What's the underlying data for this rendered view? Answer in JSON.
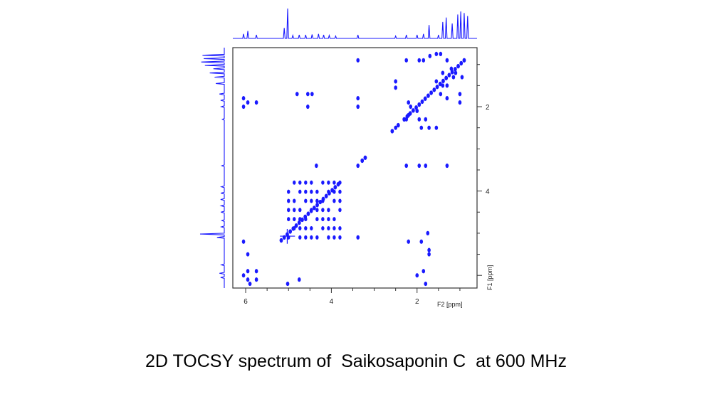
{
  "caption": "2D TOCSY spectrum of  Saikosaponin C  at 600 MHz",
  "colors": {
    "spectrum": "#1a1aff",
    "axis": "#333333",
    "text": "#000000"
  },
  "chart_data": {
    "type": "scatter",
    "xlabel": "F2 [ppm]",
    "ylabel": "F1 [ppm]",
    "xlim": [
      6.3,
      0.6
    ],
    "ylim": [
      0.6,
      6.3
    ],
    "x_ticks": [
      6,
      4,
      2
    ],
    "y_ticks": [
      2,
      4
    ],
    "diagonal": [
      0.9,
      5.2
    ],
    "top_projection_peaks": [
      {
        "ppm": 5.02,
        "h": 1.0
      },
      {
        "ppm": 5.1,
        "h": 0.35
      },
      {
        "ppm": 6.05,
        "h": 0.15
      },
      {
        "ppm": 5.95,
        "h": 0.25
      },
      {
        "ppm": 5.75,
        "h": 0.12
      },
      {
        "ppm": 4.9,
        "h": 0.1
      },
      {
        "ppm": 4.75,
        "h": 0.12
      },
      {
        "ppm": 4.6,
        "h": 0.12
      },
      {
        "ppm": 4.45,
        "h": 0.13
      },
      {
        "ppm": 4.3,
        "h": 0.15
      },
      {
        "ppm": 4.18,
        "h": 0.12
      },
      {
        "ppm": 4.05,
        "h": 0.1
      },
      {
        "ppm": 3.9,
        "h": 0.08
      },
      {
        "ppm": 3.38,
        "h": 0.12
      },
      {
        "ppm": 2.5,
        "h": 0.08
      },
      {
        "ppm": 2.25,
        "h": 0.12
      },
      {
        "ppm": 2.0,
        "h": 0.12
      },
      {
        "ppm": 1.85,
        "h": 0.15
      },
      {
        "ppm": 1.72,
        "h": 0.45
      },
      {
        "ppm": 1.5,
        "h": 0.12
      },
      {
        "ppm": 1.4,
        "h": 0.55
      },
      {
        "ppm": 1.32,
        "h": 0.7
      },
      {
        "ppm": 1.18,
        "h": 0.5
      },
      {
        "ppm": 1.05,
        "h": 0.8
      },
      {
        "ppm": 0.98,
        "h": 0.9
      },
      {
        "ppm": 0.9,
        "h": 0.85
      },
      {
        "ppm": 0.82,
        "h": 0.75
      }
    ],
    "cross_peaks": [
      {
        "x": 3.38,
        "y": 0.9
      },
      {
        "x": 3.38,
        "y": 1.8
      },
      {
        "x": 3.38,
        "y": 2.0
      },
      {
        "x": 3.38,
        "y": 3.4
      },
      {
        "x": 3.38,
        "y": 5.1
      },
      {
        "x": 4.35,
        "y": 3.4
      },
      {
        "x": 4.8,
        "y": 1.7
      },
      {
        "x": 4.55,
        "y": 1.7
      },
      {
        "x": 4.45,
        "y": 1.7
      },
      {
        "x": 4.55,
        "y": 2.0
      },
      {
        "x": 6.05,
        "y": 1.8
      },
      {
        "x": 5.95,
        "y": 1.9
      },
      {
        "x": 5.75,
        "y": 1.9
      },
      {
        "x": 6.05,
        "y": 2.0
      },
      {
        "x": 6.05,
        "y": 5.2
      },
      {
        "x": 5.95,
        "y": 5.5
      },
      {
        "x": 6.05,
        "y": 6.0
      },
      {
        "x": 5.95,
        "y": 5.9
      },
      {
        "x": 5.95,
        "y": 6.1
      },
      {
        "x": 5.75,
        "y": 5.9
      },
      {
        "x": 5.75,
        "y": 6.1
      },
      {
        "x": 5.9,
        "y": 6.2
      },
      {
        "x": 5.02,
        "y": 6.2
      },
      {
        "x": 4.75,
        "y": 6.1
      },
      {
        "x": 2.2,
        "y": 5.2
      },
      {
        "x": 1.9,
        "y": 5.2
      },
      {
        "x": 1.75,
        "y": 5.0
      },
      {
        "x": 1.72,
        "y": 5.4
      },
      {
        "x": 1.72,
        "y": 5.5
      },
      {
        "x": 1.8,
        "y": 6.2
      },
      {
        "x": 1.85,
        "y": 5.9
      },
      {
        "x": 2.0,
        "y": 6.0
      },
      {
        "x": 2.25,
        "y": 3.4
      },
      {
        "x": 1.95,
        "y": 3.4
      },
      {
        "x": 1.8,
        "y": 3.4
      },
      {
        "x": 1.3,
        "y": 3.4
      },
      {
        "x": 2.5,
        "y": 1.4
      },
      {
        "x": 2.5,
        "y": 1.55
      },
      {
        "x": 2.25,
        "y": 2.3
      },
      {
        "x": 2.5,
        "y": 2.5
      },
      {
        "x": 2.25,
        "y": 0.9
      },
      {
        "x": 1.95,
        "y": 0.9
      },
      {
        "x": 1.85,
        "y": 0.9
      },
      {
        "x": 1.7,
        "y": 0.8
      },
      {
        "x": 1.55,
        "y": 0.75
      },
      {
        "x": 1.45,
        "y": 0.75
      },
      {
        "x": 1.3,
        "y": 0.9
      },
      {
        "x": 1.1,
        "y": 1.2
      },
      {
        "x": 1.15,
        "y": 1.3
      },
      {
        "x": 1.4,
        "y": 1.5
      },
      {
        "x": 1.55,
        "y": 1.4
      },
      {
        "x": 1.45,
        "y": 1.7
      },
      {
        "x": 1.3,
        "y": 1.5
      },
      {
        "x": 1.3,
        "y": 1.8
      },
      {
        "x": 1.0,
        "y": 1.7
      },
      {
        "x": 1.0,
        "y": 1.9
      },
      {
        "x": 1.55,
        "y": 2.5
      },
      {
        "x": 1.72,
        "y": 2.5
      },
      {
        "x": 1.9,
        "y": 2.5
      },
      {
        "x": 2.2,
        "y": 1.9
      },
      {
        "x": 2.15,
        "y": 2.0
      },
      {
        "x": 2.0,
        "y": 2.1
      },
      {
        "x": 1.95,
        "y": 2.3
      },
      {
        "x": 2.2,
        "y": 2.2
      },
      {
        "x": 1.8,
        "y": 2.3
      },
      {
        "x": 1.4,
        "y": 1.2
      },
      {
        "x": 1.2,
        "y": 1.1
      },
      {
        "x": 0.95,
        "y": 1.3
      }
    ],
    "sugar_block": {
      "x_range": [
        5.0,
        3.8
      ],
      "y_range": [
        3.8,
        5.1
      ],
      "rows": 7,
      "cols": 10
    }
  }
}
